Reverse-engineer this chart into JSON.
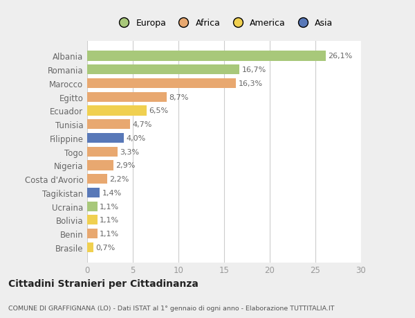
{
  "countries": [
    "Albania",
    "Romania",
    "Marocco",
    "Egitto",
    "Ecuador",
    "Tunisia",
    "Filippine",
    "Togo",
    "Nigeria",
    "Costa d'Avorio",
    "Tagikistan",
    "Ucraina",
    "Bolivia",
    "Benin",
    "Brasile"
  ],
  "values": [
    26.1,
    16.7,
    16.3,
    8.7,
    6.5,
    4.7,
    4.0,
    3.3,
    2.9,
    2.2,
    1.4,
    1.1,
    1.1,
    1.1,
    0.7
  ],
  "labels": [
    "26,1%",
    "16,7%",
    "16,3%",
    "8,7%",
    "6,5%",
    "4,7%",
    "4,0%",
    "3,3%",
    "2,9%",
    "2,2%",
    "1,4%",
    "1,1%",
    "1,1%",
    "1,1%",
    "0,7%"
  ],
  "bar_colors": [
    "#a8c87a",
    "#a8c87a",
    "#e8a870",
    "#e8a870",
    "#f0d050",
    "#e8a870",
    "#5878b8",
    "#e8a870",
    "#e8a870",
    "#e8a870",
    "#5878b8",
    "#a8c87a",
    "#f0d050",
    "#e8a870",
    "#f0d050"
  ],
  "legend_items": [
    "Europa",
    "Africa",
    "America",
    "Asia"
  ],
  "legend_colors": [
    "#a8c87a",
    "#e8a870",
    "#f0d050",
    "#5878b8"
  ],
  "xlim": [
    0,
    30
  ],
  "xticks": [
    0,
    5,
    10,
    15,
    20,
    25,
    30
  ],
  "title": "Cittadini Stranieri per Cittadinanza",
  "subtitle": "COMUNE DI GRAFFIGNANA (LO) - Dati ISTAT al 1° gennaio di ogni anno - Elaborazione TUTTITALIA.IT",
  "background_color": "#eeeeee",
  "plot_background": "#ffffff",
  "grid_color": "#cccccc",
  "label_color": "#666666",
  "tick_color": "#999999"
}
